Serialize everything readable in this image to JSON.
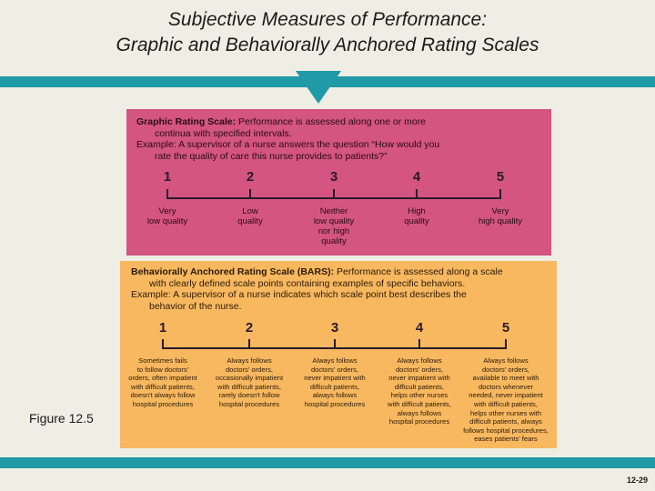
{
  "title": {
    "line1": "Subjective Measures of Performance:",
    "line2": "Graphic and Behaviorally Anchored Rating Scales"
  },
  "graphic_scale": {
    "heading": "Graphic Rating Scale:",
    "desc_line1": " Performance is assessed along one or more",
    "desc_line2": "continua with specified intervals.",
    "example_line1": "Example: A supervisor of a nurse answers the question “How would you",
    "example_line2": "rate the quality of care this nurse provides to patients?”",
    "points": [
      {
        "num": "1",
        "label": "Very\nlow quality"
      },
      {
        "num": "2",
        "label": "Low\nquality"
      },
      {
        "num": "3",
        "label": "Neither\nlow quality\nnor high\nquality"
      },
      {
        "num": "4",
        "label": "High\nquality"
      },
      {
        "num": "5",
        "label": "Very\nhigh quality"
      }
    ]
  },
  "bars_scale": {
    "heading": "Behaviorally Anchored Rating Scale (BARS):",
    "desc_line1": " Performance is assessed along a scale",
    "desc_line2": "with clearly defined scale points containing examples of specific behaviors.",
    "example_line1": "Example: A supervisor of a nurse indicates which scale point best describes the",
    "example_line2": "behavior of the nurse.",
    "points": [
      {
        "num": "1",
        "label": "Sometimes fails\nto follow doctors'\norders, often impatient\nwith difficult patients,\ndoesn't always follow\nhospital procedures"
      },
      {
        "num": "2",
        "label": "Always follows\ndoctors' orders,\noccasionally impatient\nwith difficult patients,\nrarely doesn't follow\nhospital procedures"
      },
      {
        "num": "3",
        "label": "Always follows\ndoctors' orders,\nnever impatient with\ndifficult patients,\nalways follows\nhospital procedures"
      },
      {
        "num": "4",
        "label": "Always follows\ndoctors' orders,\nnever impatient with\ndifficult patients,\nhelps other nurses\nwith difficult patients,\nalways follows\nhospital procedures"
      },
      {
        "num": "5",
        "label": "Always follows\ndoctors' orders,\navailable to meet with\ndoctors whenever\nneeded, never impatient\nwith difficult patients,\nhelps other nurses with\ndifficult patients, always\nfollows hospital procedures,\neases patients' fears"
      }
    ]
  },
  "figure_caption": "Figure 12.5",
  "page_number": "12-29",
  "colors": {
    "teal": "#1f9aa6",
    "pink": "#d35580",
    "orange": "#f7b860",
    "background": "#eeeee5"
  }
}
